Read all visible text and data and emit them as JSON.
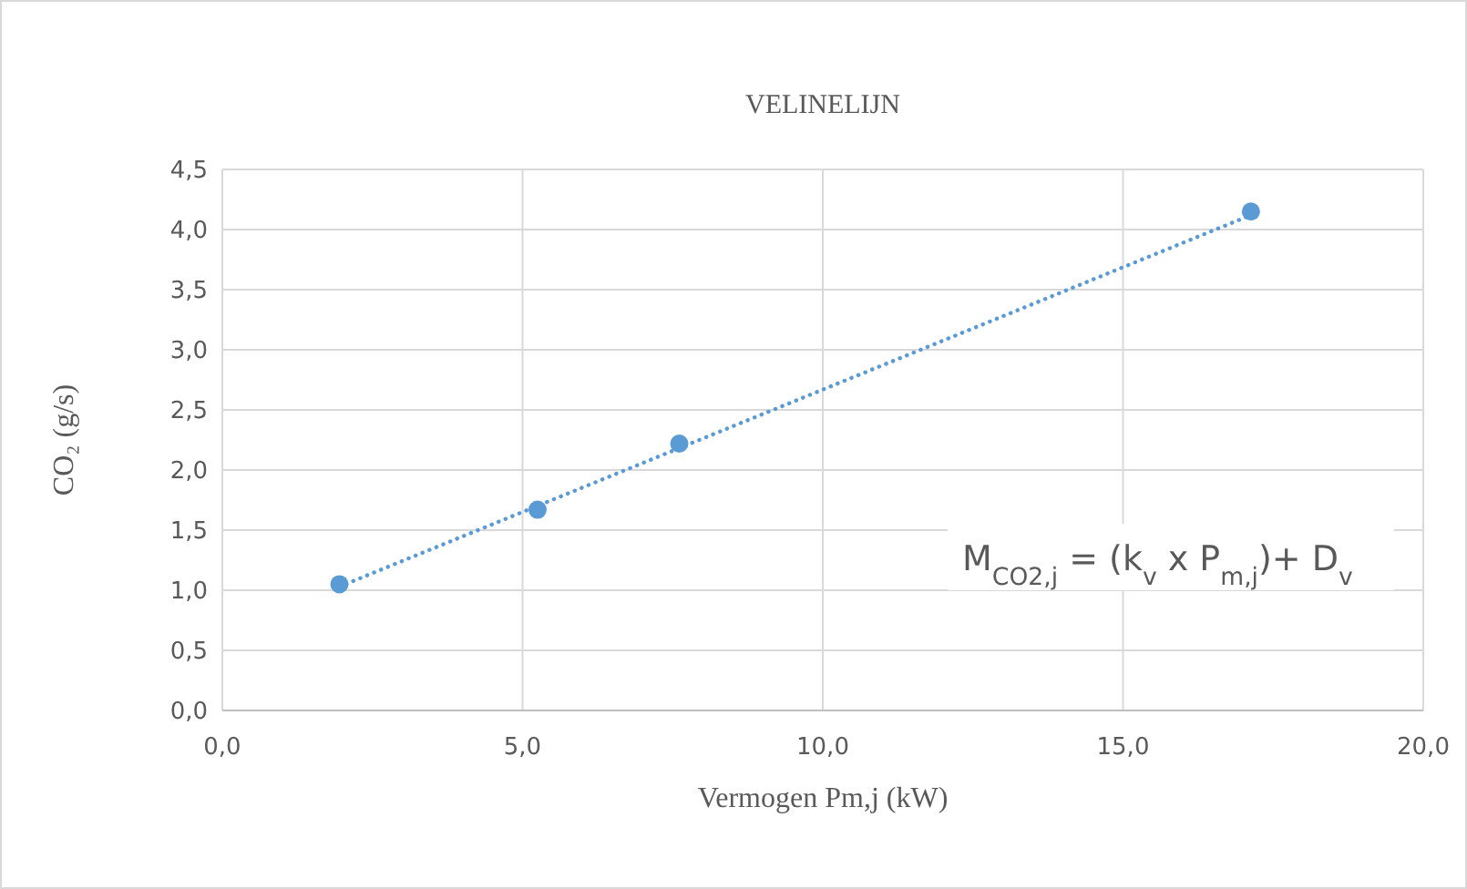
{
  "chart_data": {
    "type": "scatter",
    "title": "VELINELIJN",
    "xlabel": "Vermogen Pm,j (kW)",
    "ylabel": "CO₂ (g/s)",
    "annotations": [
      "M$_{CO2,j}$ = (k$_{v}$ x  P$_{m,j}$)+ D$_{v}$"
    ],
    "series": [
      {
        "color": "#5b9bd5",
        "x": [
          1.95,
          5.25,
          7.61,
          17.13
        ],
        "values": [
          1.05,
          1.67,
          2.22,
          4.15
        ],
        "marker": "circle"
      },
      {
        "type": "line",
        "color": "#5b9bd5",
        "x": [
          1.95,
          17.13
        ],
        "values": [
          1.03,
          4.12
        ],
        "marker": "none",
        "line_style": "dotted"
      }
    ],
    "xlim": [
      0,
      20
    ],
    "xticks": [
      {
        "value": 0,
        "label": "0,0"
      },
      {
        "value": 5,
        "label": "5,0"
      },
      {
        "value": 10,
        "label": "10,0"
      },
      {
        "value": 15,
        "label": "15,0"
      },
      {
        "value": 20,
        "label": "20,0"
      }
    ],
    "ylim": [
      0,
      4.5
    ],
    "yticks": [
      {
        "value": 0,
        "label": "0,0"
      },
      {
        "value": 0.5,
        "label": "0,5"
      },
      {
        "value": 1,
        "label": "1,0"
      },
      {
        "value": 1.5,
        "label": "1,5"
      },
      {
        "value": 2,
        "label": "2,0"
      },
      {
        "value": 2.5,
        "label": "2,5"
      },
      {
        "value": 3,
        "label": "3,0"
      },
      {
        "value": 3.5,
        "label": "3,5"
      },
      {
        "value": 4,
        "label": "4,0"
      },
      {
        "value": 4.5,
        "label": "4,5"
      }
    ],
    "grid": true
  }
}
